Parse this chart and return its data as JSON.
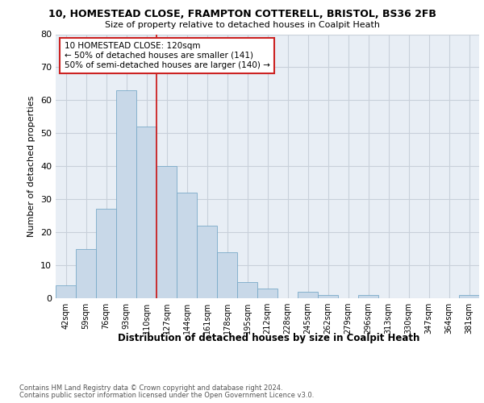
{
  "title1": "10, HOMESTEAD CLOSE, FRAMPTON COTTERELL, BRISTOL, BS36 2FB",
  "title2": "Size of property relative to detached houses in Coalpit Heath",
  "xlabel": "Distribution of detached houses by size in Coalpit Heath",
  "ylabel": "Number of detached properties",
  "categories": [
    "42sqm",
    "59sqm",
    "76sqm",
    "93sqm",
    "110sqm",
    "127sqm",
    "144sqm",
    "161sqm",
    "178sqm",
    "195sqm",
    "212sqm",
    "228sqm",
    "245sqm",
    "262sqm",
    "279sqm",
    "296sqm",
    "313sqm",
    "330sqm",
    "347sqm",
    "364sqm",
    "381sqm"
  ],
  "values": [
    4,
    15,
    27,
    63,
    52,
    40,
    32,
    22,
    14,
    5,
    3,
    0,
    2,
    1,
    0,
    1,
    0,
    0,
    0,
    0,
    1
  ],
  "bar_color": "#c8d8e8",
  "bar_edge_color": "#7aaac8",
  "grid_color": "#c8d0da",
  "vline_x": 5,
  "vline_color": "#cc2222",
  "annotation_text": "10 HOMESTEAD CLOSE: 120sqm\n← 50% of detached houses are smaller (141)\n50% of semi-detached houses are larger (140) →",
  "annotation_box_color": "#ffffff",
  "annotation_box_edge": "#cc2222",
  "ylim": [
    0,
    80
  ],
  "yticks": [
    0,
    10,
    20,
    30,
    40,
    50,
    60,
    70,
    80
  ],
  "footnote1": "Contains HM Land Registry data © Crown copyright and database right 2024.",
  "footnote2": "Contains public sector information licensed under the Open Government Licence v3.0.",
  "bg_color": "#e8eef5"
}
